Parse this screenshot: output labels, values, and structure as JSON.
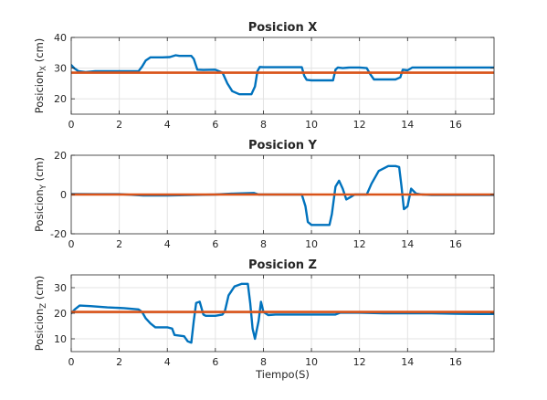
{
  "chart_data": [
    {
      "type": "line",
      "title": "Posicion X",
      "ylabel": "Posicion",
      "ylabel_sub": "X",
      "ylabel_unit": " (cm)",
      "xlabel": "",
      "xlim": [
        0,
        17.6
      ],
      "ylim": [
        15,
        40
      ],
      "xticks": [
        0,
        2,
        4,
        6,
        8,
        10,
        12,
        14,
        16
      ],
      "yticks": [
        20,
        30,
        40
      ],
      "grid": true,
      "series": [
        {
          "color": "#0072BD",
          "x": [
            0,
            0.12,
            0.3,
            0.6,
            1.0,
            2.0,
            2.8,
            2.95,
            3.1,
            3.3,
            3.8,
            4.1,
            4.35,
            4.5,
            5.0,
            5.1,
            5.25,
            5.5,
            6.0,
            6.3,
            6.5,
            6.7,
            7.0,
            7.5,
            7.65,
            7.75,
            7.85,
            8.0,
            8.5,
            9.0,
            9.6,
            9.7,
            9.8,
            10.0,
            10.5,
            10.9,
            11.0,
            11.1,
            11.3,
            11.6,
            12.0,
            12.3,
            12.45,
            12.6,
            13.0,
            13.5,
            13.7,
            13.8,
            14.0,
            14.2,
            14.5,
            15.0,
            16.0,
            17.0,
            17.6
          ],
          "y": [
            31,
            30,
            29,
            28.7,
            29,
            29,
            29,
            30.5,
            32.5,
            33.5,
            33.5,
            33.6,
            34.2,
            34,
            34,
            33,
            29.5,
            29.4,
            29.5,
            28.5,
            25,
            22.5,
            21.5,
            21.5,
            24,
            29,
            30.4,
            30.3,
            30.3,
            30.3,
            30.3,
            27.5,
            26.2,
            26,
            26,
            26,
            29.5,
            30.2,
            30,
            30.2,
            30.2,
            30,
            28,
            26.3,
            26.3,
            26.3,
            27,
            29.5,
            29.3,
            30.2,
            30.2,
            30.2,
            30.2,
            30.2,
            30.2
          ]
        },
        {
          "color": "#D95319",
          "x": [
            0,
            17.6
          ],
          "y": [
            28.5,
            28.5
          ]
        }
      ]
    },
    {
      "type": "line",
      "title": "Posicion Y",
      "ylabel": "Posicion",
      "ylabel_sub": "Y",
      "ylabel_unit": " (cm)",
      "xlabel": "",
      "xlim": [
        0,
        17.6
      ],
      "ylim": [
        -20,
        20
      ],
      "xticks": [
        0,
        2,
        4,
        6,
        8,
        10,
        12,
        14,
        16
      ],
      "yticks": [
        -20,
        0,
        20
      ],
      "grid": true,
      "series": [
        {
          "color": "#0072BD",
          "x": [
            0,
            1.0,
            2.0,
            3.0,
            4.0,
            5.0,
            6.0,
            6.8,
            7.6,
            7.8,
            8.0,
            9.0,
            9.6,
            9.75,
            9.85,
            10.0,
            10.5,
            10.75,
            10.85,
            11.0,
            11.15,
            11.3,
            11.45,
            11.6,
            11.8,
            12.0,
            12.3,
            12.5,
            12.8,
            13.2,
            13.5,
            13.65,
            13.75,
            13.85,
            14.0,
            14.15,
            14.35,
            14.6,
            15.0,
            16.0,
            17.0,
            17.6
          ],
          "y": [
            0.3,
            0.2,
            0.2,
            -0.5,
            -0.5,
            -0.3,
            0,
            0.5,
            0.8,
            0,
            0,
            0,
            0,
            -6,
            -14,
            -15.5,
            -15.5,
            -15.5,
            -10,
            4,
            7,
            3,
            -2.5,
            -1.5,
            0,
            0,
            0,
            5.5,
            12,
            14.5,
            14.5,
            14,
            4,
            -7.5,
            -6,
            3,
            0.5,
            0,
            -0.3,
            -0.3,
            -0.3,
            -0.3
          ]
        },
        {
          "color": "#D95319",
          "x": [
            0,
            17.6
          ],
          "y": [
            0,
            0
          ]
        }
      ]
    },
    {
      "type": "line",
      "title": "Posicion Z",
      "ylabel": "Posicion",
      "ylabel_sub": "Z",
      "ylabel_unit": " (cm)",
      "xlabel": "Tiempo(S)",
      "xlim": [
        0,
        17.6
      ],
      "ylim": [
        5,
        35
      ],
      "xticks": [
        0,
        2,
        4,
        6,
        8,
        10,
        12,
        14,
        16
      ],
      "yticks": [
        10,
        20,
        30
      ],
      "grid": true,
      "series": [
        {
          "color": "#0072BD",
          "x": [
            0,
            0.15,
            0.35,
            0.8,
            1.5,
            2.2,
            2.8,
            2.95,
            3.1,
            3.3,
            3.5,
            4.0,
            4.2,
            4.3,
            4.7,
            4.85,
            5.0,
            5.1,
            5.2,
            5.35,
            5.5,
            5.6,
            6.0,
            6.3,
            6.4,
            6.55,
            6.8,
            7.1,
            7.35,
            7.45,
            7.55,
            7.65,
            7.8,
            7.9,
            8.0,
            8.2,
            8.5,
            9.0,
            10.0,
            11.0,
            11.2,
            12.0,
            13.0,
            14.0,
            15.0,
            16.0,
            17.0,
            17.6
          ],
          "y": [
            20,
            21.5,
            23,
            22.8,
            22.3,
            22,
            21.5,
            20.5,
            18,
            16,
            14.5,
            14.5,
            14,
            11.5,
            11,
            9,
            8.5,
            17,
            24,
            24.5,
            19.5,
            19,
            19,
            19.5,
            21,
            27,
            30.5,
            31.5,
            31.5,
            24,
            14,
            10,
            17,
            24.5,
            20.5,
            19.3,
            19.5,
            19.5,
            19.5,
            19.5,
            20.2,
            20.2,
            20,
            20,
            20,
            19.8,
            19.7,
            19.7
          ]
        },
        {
          "color": "#D95319",
          "x": [
            0,
            17.6
          ],
          "y": [
            20.5,
            20.5
          ]
        }
      ]
    }
  ]
}
